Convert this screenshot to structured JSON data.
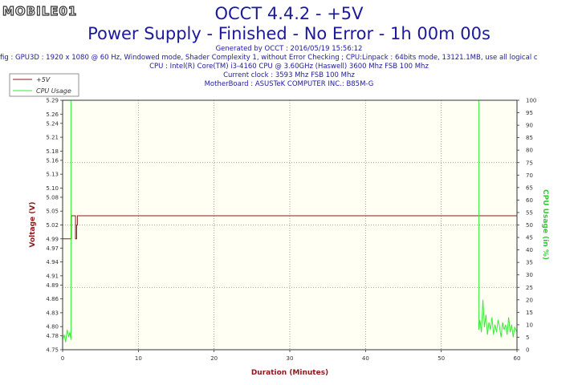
{
  "logo_text": "MOBILE01",
  "header": {
    "title": "OCCT 4.4.2 - +5V",
    "subtitle": "Power Supply - Finished - No Error - 1h 00m 00s",
    "generated": "Generated by OCCT : 2016/05/19 15:56:12",
    "config": "fig : GPU3D : 1920 x 1080 @ 60 Hz, Windowed mode, Shader Complexity 1, without Error Checking ; CPU:Linpack : 64bits mode, 13121.1MB, use all logical c",
    "cpu": "CPU : Intel(R) Core(TM) i3-4160 CPU @ 3.60GHz (Haswell) 3600 Mhz FSB 100 Mhz",
    "clock": "Current clock : 3593 Mhz FSB 100 Mhz",
    "motherboard": "MotherBoard : ASUSTeK COMPUTER INC.: B85M-G"
  },
  "colors": {
    "voltage": "#8b1a1a",
    "cpu_usage": "#33ee33",
    "plot_bg": "#fffff3",
    "grid": "#888888",
    "title": "#1c1a9a"
  },
  "chart_data": {
    "type": "line",
    "xlabel": "Duration (Minutes)",
    "ylabel": "Voltage (V)",
    "y2label": "CPU Usage (in %)",
    "xlim": [
      0,
      60
    ],
    "ylim": [
      4.75,
      5.29
    ],
    "y2lim": [
      0,
      100
    ],
    "x_ticks": [
      "0",
      "10",
      "20",
      "30",
      "40",
      "50",
      "60"
    ],
    "y_ticks": [
      "4.75",
      "4.78",
      "4.80",
      "4.83",
      "4.86",
      "4.89",
      "4.91",
      "4.94",
      "4.97",
      "4.99",
      "5.02",
      "5.05",
      "5.08",
      "5.10",
      "5.13",
      "5.16",
      "5.18",
      "5.21",
      "5.24",
      "5.26",
      "5.29"
    ],
    "y2_ticks": [
      "0",
      "5",
      "10",
      "15",
      "20",
      "25",
      "30",
      "35",
      "40",
      "45",
      "50",
      "55",
      "60",
      "65",
      "70",
      "75",
      "80",
      "85",
      "90",
      "95",
      "100"
    ],
    "grid": true,
    "legend_position": "top-left",
    "series": [
      {
        "name": "+5V",
        "axis": "left",
        "x": [
          0,
          1.15,
          1.15,
          1.7,
          1.7,
          1.85,
          1.85,
          1.95,
          1.95,
          60
        ],
        "y": [
          4.99,
          4.99,
          5.04,
          5.04,
          4.99,
          4.99,
          5.02,
          5.02,
          5.04,
          5.04
        ]
      },
      {
        "name": "CPU Usage",
        "axis": "right",
        "x": [
          0,
          0.2,
          0.4,
          0.6,
          0.8,
          0.95,
          1.1,
          1.1,
          54.95,
          54.95,
          55.1,
          55.3,
          55.5,
          55.7,
          55.9,
          56.1,
          56.3,
          56.5,
          56.7,
          56.9,
          57.1,
          57.3,
          57.5,
          57.7,
          57.9,
          58.1,
          58.3,
          58.5,
          58.7,
          58.9,
          59.1,
          59.3,
          59.5,
          59.7,
          60
        ],
        "y": [
          4,
          6,
          3,
          8,
          5,
          7,
          4,
          100,
          100,
          8,
          12,
          7,
          20,
          9,
          14,
          6,
          11,
          8,
          13,
          6,
          10,
          7,
          12,
          9,
          5,
          11,
          8,
          10,
          6,
          13,
          7,
          10,
          5,
          9,
          7
        ]
      }
    ]
  }
}
